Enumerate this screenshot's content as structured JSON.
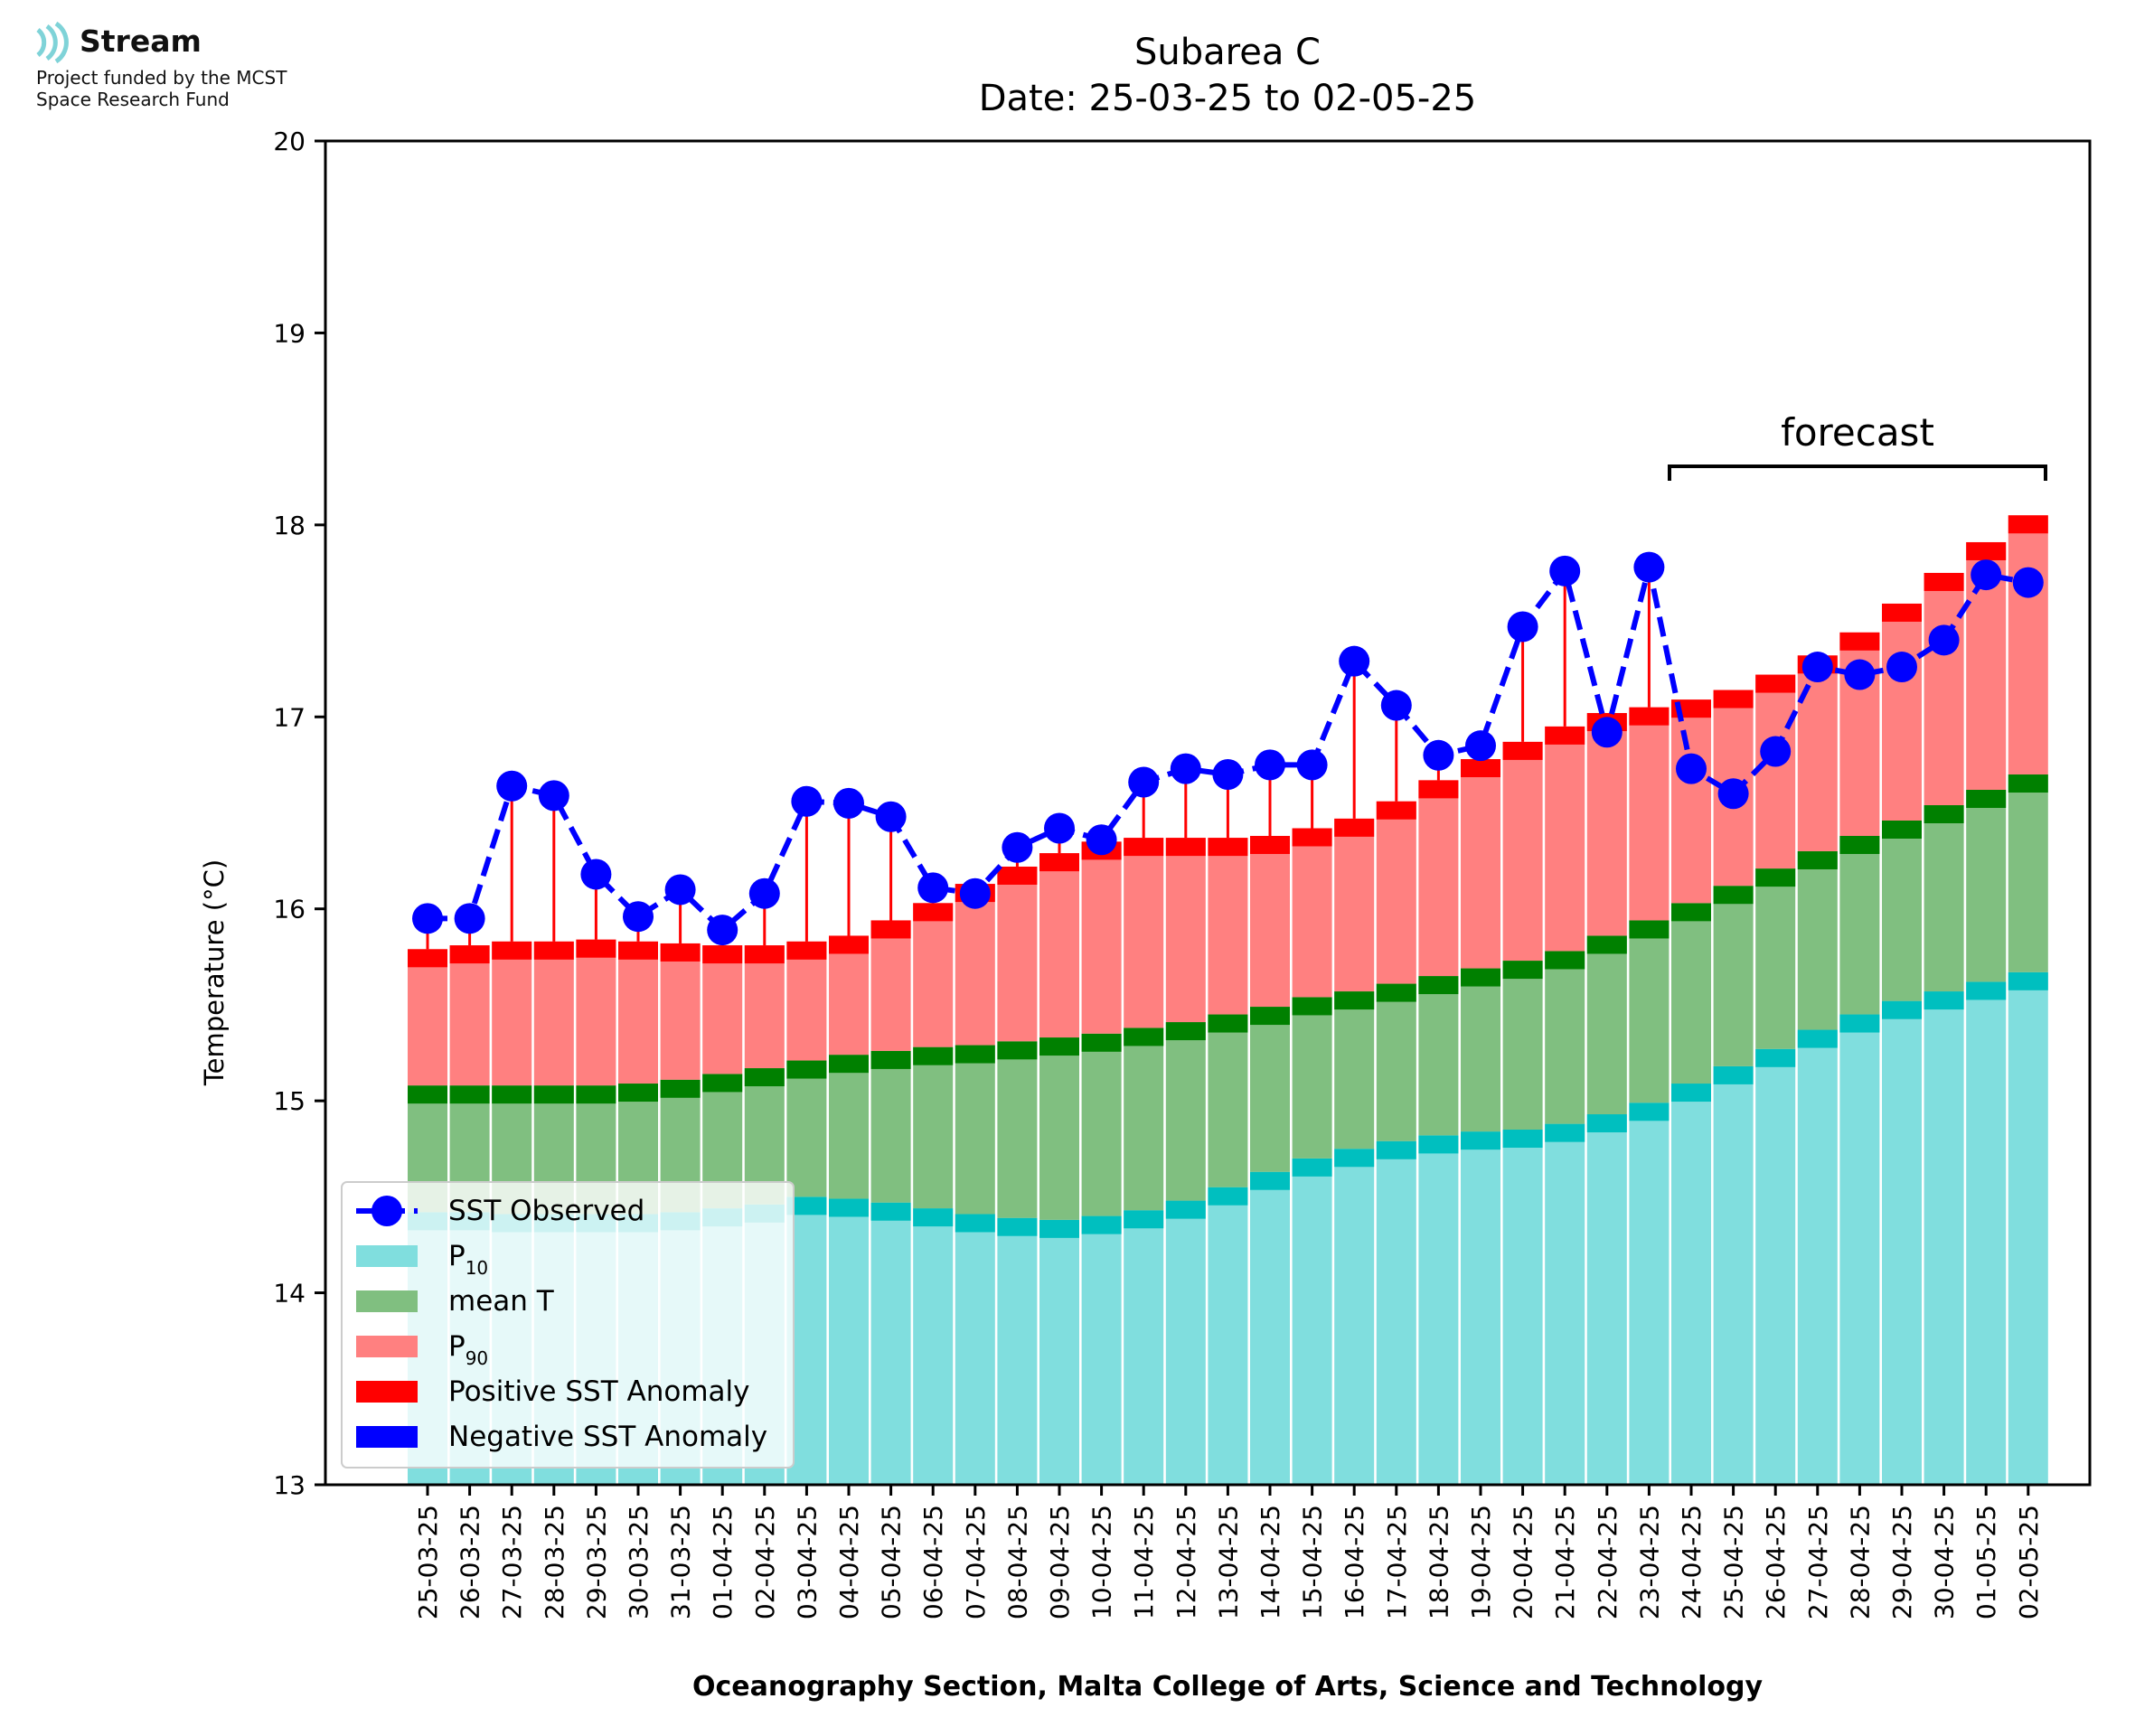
{
  "logo": {
    "brand": "Stream",
    "note_line1": "Project funded by the MCST",
    "note_line2": "Space Research Fund",
    "icon": "wave-signal-icon",
    "icon_color": "#7fd3d8"
  },
  "chart_data": {
    "type": "bar",
    "title": "Subarea C",
    "subtitle": "Date: 25-03-25 to 02-05-25",
    "xlabel": "Oceanography Section, Malta College of Arts, Science and Technology",
    "ylabel": "Temperature (°C)",
    "ylim": [
      13,
      20
    ],
    "yticks": [
      13,
      14,
      15,
      16,
      17,
      18,
      19,
      20
    ],
    "grid": false,
    "legend_position": "lower-left",
    "annotation": "forecast",
    "forecast_start": "24-04-25",
    "forecast_end": "02-05-25",
    "colors": {
      "p10": "#80dede",
      "p10_edge": "#00bfbf",
      "mean": "#80bf80",
      "mean_edge": "#008000",
      "p90": "#ff8080",
      "p90_edge": "#ff0000",
      "observed": "#0000ff",
      "positive_anomaly": "#ff0000",
      "negative_anomaly": "#0000ff"
    },
    "categories": [
      "25-03-25",
      "26-03-25",
      "27-03-25",
      "28-03-25",
      "29-03-25",
      "30-03-25",
      "31-03-25",
      "01-04-25",
      "02-04-25",
      "03-04-25",
      "04-04-25",
      "05-04-25",
      "06-04-25",
      "07-04-25",
      "08-04-25",
      "09-04-25",
      "10-04-25",
      "11-04-25",
      "12-04-25",
      "13-04-25",
      "14-04-25",
      "15-04-25",
      "16-04-25",
      "17-04-25",
      "18-04-25",
      "19-04-25",
      "20-04-25",
      "21-04-25",
      "22-04-25",
      "23-04-25",
      "24-04-25",
      "25-04-25",
      "26-04-25",
      "27-04-25",
      "28-04-25",
      "29-04-25",
      "30-04-25",
      "01-05-25",
      "02-05-25"
    ],
    "series": [
      {
        "name": "P10",
        "values": [
          14.42,
          14.42,
          14.41,
          14.41,
          14.41,
          14.41,
          14.42,
          14.44,
          14.46,
          14.5,
          14.49,
          14.47,
          14.44,
          14.41,
          14.39,
          14.38,
          14.4,
          14.43,
          14.48,
          14.55,
          14.63,
          14.7,
          14.75,
          14.79,
          14.82,
          14.84,
          14.85,
          14.88,
          14.93,
          14.99,
          15.09,
          15.18,
          15.27,
          15.37,
          15.45,
          15.52,
          15.57,
          15.62,
          15.67
        ]
      },
      {
        "name": "mean T",
        "values": [
          15.08,
          15.08,
          15.08,
          15.08,
          15.08,
          15.09,
          15.11,
          15.14,
          15.17,
          15.21,
          15.24,
          15.26,
          15.28,
          15.29,
          15.31,
          15.33,
          15.35,
          15.38,
          15.41,
          15.45,
          15.49,
          15.54,
          15.57,
          15.61,
          15.65,
          15.69,
          15.73,
          15.78,
          15.86,
          15.94,
          16.03,
          16.12,
          16.21,
          16.3,
          16.38,
          16.46,
          16.54,
          16.62,
          16.7
        ]
      },
      {
        "name": "P90",
        "values": [
          15.79,
          15.81,
          15.83,
          15.83,
          15.84,
          15.83,
          15.82,
          15.81,
          15.81,
          15.83,
          15.86,
          15.94,
          16.03,
          16.13,
          16.22,
          16.29,
          16.35,
          16.37,
          16.37,
          16.37,
          16.38,
          16.42,
          16.47,
          16.56,
          16.67,
          16.78,
          16.87,
          16.95,
          17.02,
          17.05,
          17.09,
          17.14,
          17.22,
          17.32,
          17.44,
          17.59,
          17.75,
          17.91,
          18.05
        ]
      },
      {
        "name": "SST Observed",
        "values": [
          15.95,
          15.95,
          16.64,
          16.59,
          16.18,
          15.96,
          16.1,
          15.89,
          16.08,
          16.56,
          16.55,
          16.48,
          16.11,
          16.08,
          16.32,
          16.42,
          16.36,
          16.66,
          16.73,
          16.7,
          16.75,
          16.75,
          17.29,
          17.06,
          16.8,
          16.85,
          17.47,
          17.76,
          16.92,
          17.78,
          16.73,
          16.6,
          16.82,
          17.26,
          17.22,
          17.26,
          17.4,
          17.74,
          17.7
        ]
      }
    ],
    "legend": [
      {
        "label": "SST Observed",
        "sub": "",
        "kind": "line"
      },
      {
        "label": "P",
        "sub": "10",
        "kind": "p10"
      },
      {
        "label": "mean T",
        "sub": "",
        "kind": "mean"
      },
      {
        "label": "P",
        "sub": "90",
        "kind": "p90"
      },
      {
        "label": "Positive SST Anomaly",
        "sub": "",
        "kind": "pos"
      },
      {
        "label": "Negative SST Anomaly",
        "sub": "",
        "kind": "neg"
      }
    ]
  }
}
